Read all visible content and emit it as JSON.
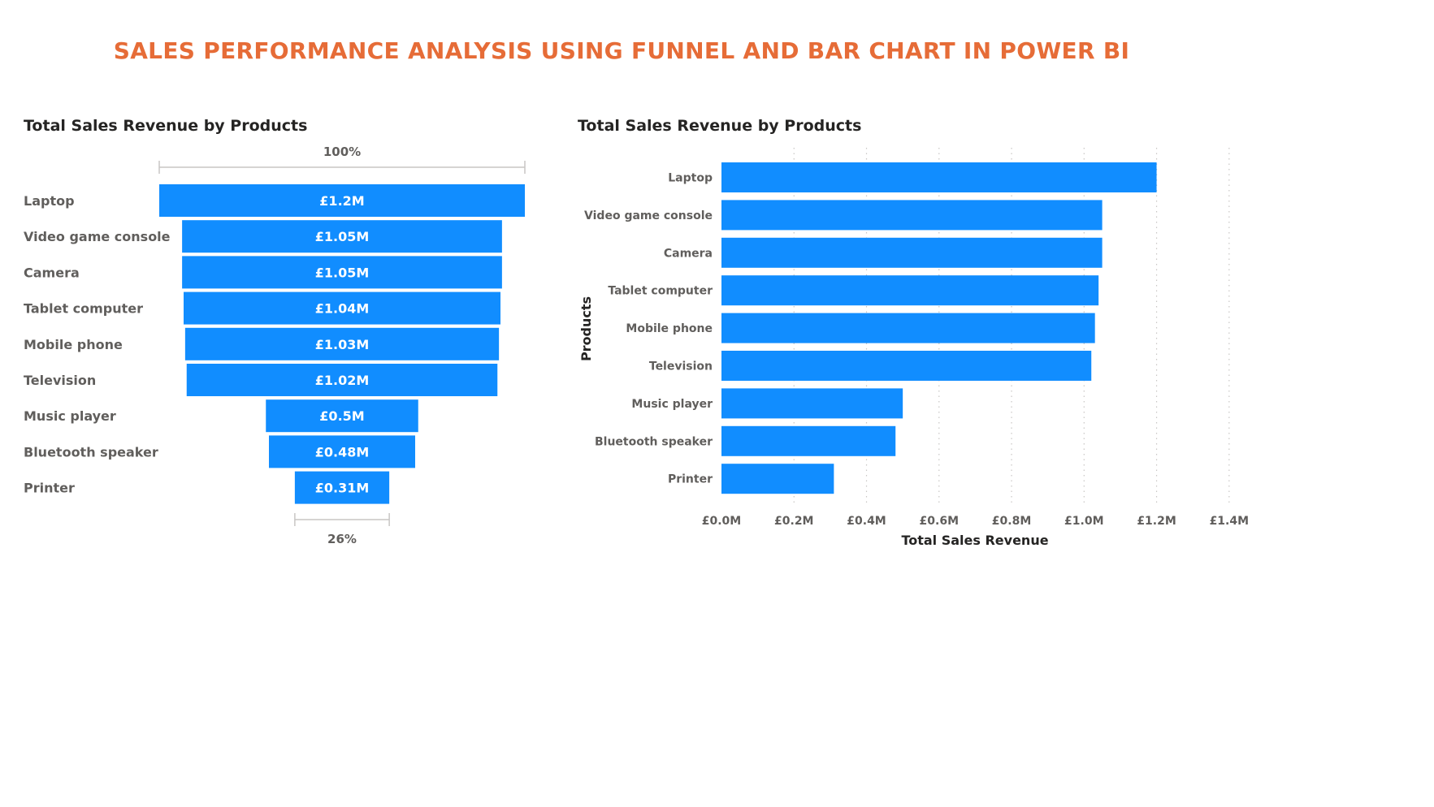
{
  "page": {
    "title": "SALES PERFORMANCE ANALYSIS USING FUNNEL AND BAR CHART IN POWER BI"
  },
  "colors": {
    "bar": "#118DFF",
    "title": "#E66C37",
    "text": "#605E5C",
    "axis": "#C8C6C4"
  },
  "chart_data": [
    {
      "type": "funnel",
      "title": "Total Sales Revenue by Products",
      "categories": [
        "Laptop",
        "Video game console",
        "Camera",
        "Tablet computer",
        "Mobile phone",
        "Television",
        "Music player",
        "Bluetooth speaker",
        "Printer"
      ],
      "values": [
        1.2,
        1.05,
        1.05,
        1.04,
        1.03,
        1.02,
        0.5,
        0.48,
        0.31
      ],
      "data_labels": [
        "£1.2M",
        "£1.05M",
        "£1.05M",
        "£1.04M",
        "£1.03M",
        "£1.02M",
        "£0.5M",
        "£0.48M",
        "£0.31M"
      ],
      "top_percent_label": "100%",
      "bottom_percent_label": "26%"
    },
    {
      "type": "bar",
      "orientation": "horizontal",
      "title": "Total Sales Revenue by Products",
      "categories": [
        "Laptop",
        "Video game console",
        "Camera",
        "Tablet computer",
        "Mobile phone",
        "Television",
        "Music player",
        "Bluetooth speaker",
        "Printer"
      ],
      "values": [
        1.2,
        1.05,
        1.05,
        1.04,
        1.03,
        1.02,
        0.5,
        0.48,
        0.31
      ],
      "xlabel": "Total Sales Revenue",
      "ylabel": "Products",
      "xlim": [
        0,
        1.4
      ],
      "x_ticks": [
        0,
        0.2,
        0.4,
        0.6,
        0.8,
        1.0,
        1.2,
        1.4
      ],
      "x_tick_labels": [
        "£0.0M",
        "£0.2M",
        "£0.4M",
        "£0.6M",
        "£0.8M",
        "£1.0M",
        "£1.2M",
        "£1.4M"
      ],
      "grid": "vertical dotted"
    }
  ]
}
